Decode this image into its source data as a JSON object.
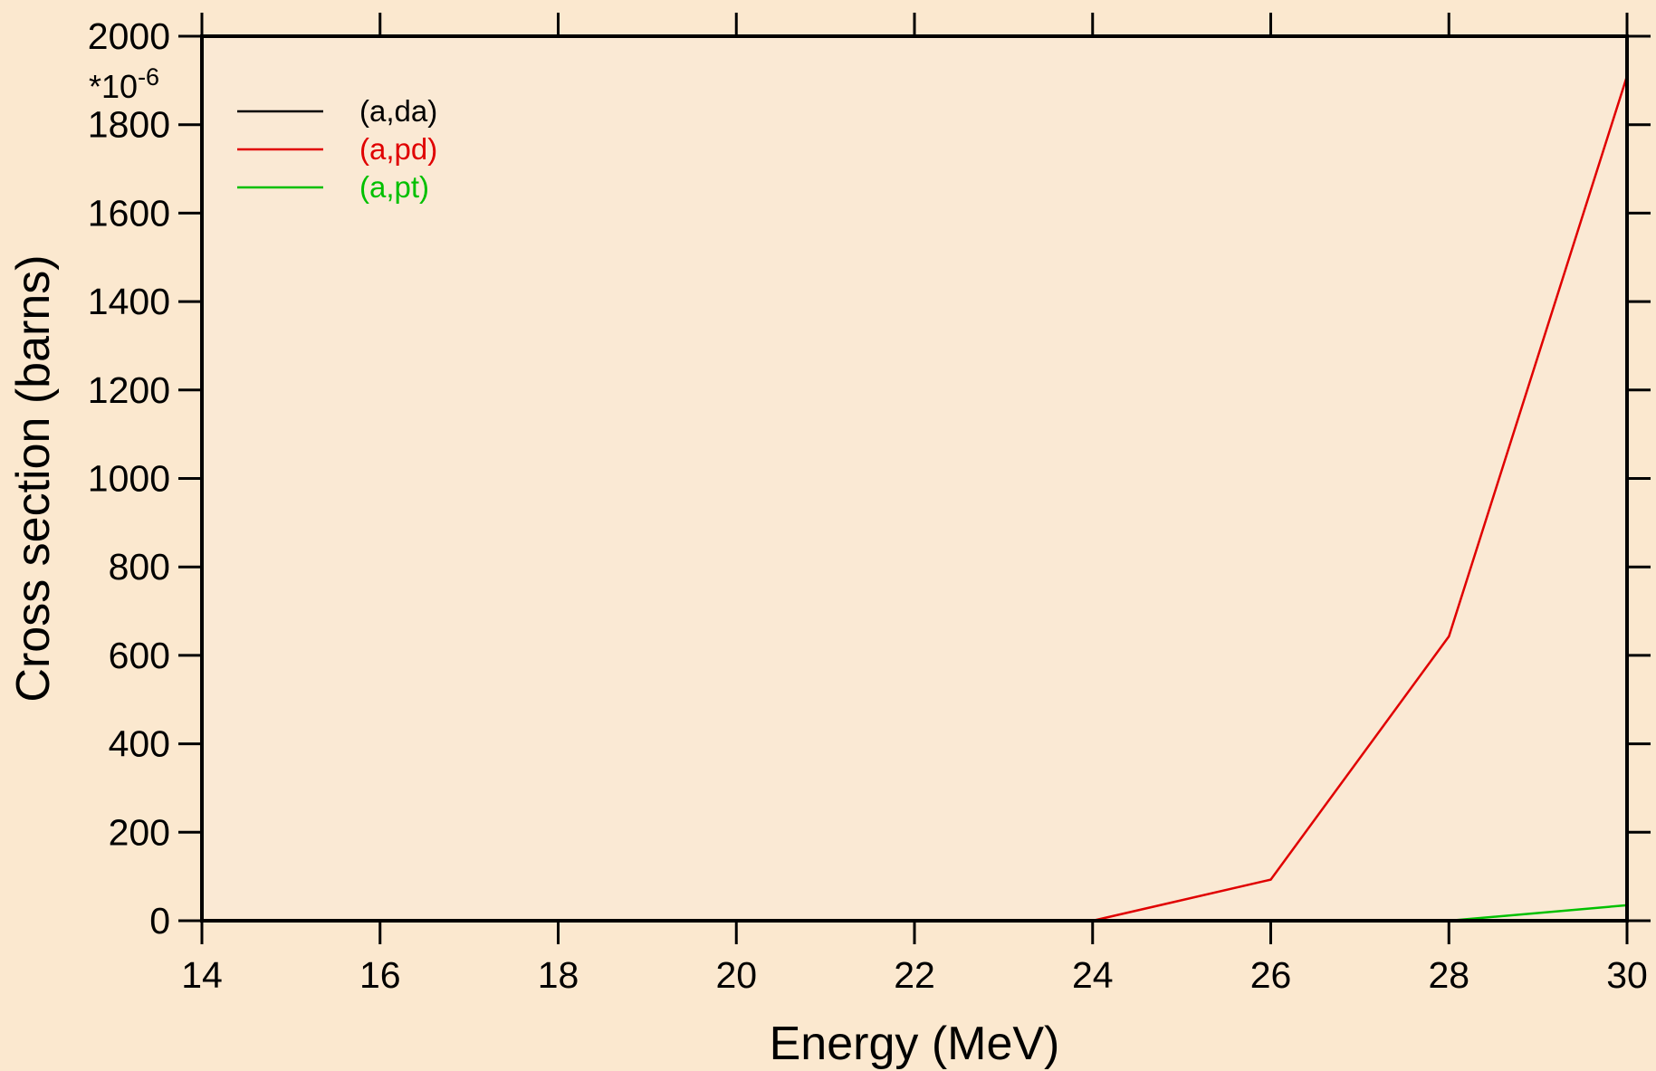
{
  "chart_data": {
    "type": "line",
    "xlabel": "Energy (MeV)",
    "ylabel": "Cross section (barns)",
    "y_multiplier": {
      "base": "*10",
      "exponent": "-6"
    },
    "xlim": [
      14,
      30
    ],
    "ylim": [
      0,
      2000
    ],
    "x_ticks": [
      14,
      16,
      18,
      20,
      22,
      24,
      26,
      28,
      30
    ],
    "y_ticks": [
      0,
      200,
      400,
      600,
      800,
      1000,
      1200,
      1400,
      1600,
      1800,
      2000
    ],
    "grid": false,
    "legend_position": "top-left",
    "plot_background": "#fae9d4",
    "page_background": "#fbe8cf",
    "series": [
      {
        "name": "(a,da)",
        "color": "#000000",
        "x": [
          14,
          16,
          17,
          18,
          20,
          22,
          24,
          26,
          28,
          30
        ],
        "y": [
          0,
          0,
          0,
          0,
          0,
          0,
          0,
          0,
          0,
          0
        ]
      },
      {
        "name": "(a,pd)",
        "color": "#e00000",
        "x": [
          16.8,
          18,
          20,
          22,
          24,
          26,
          28,
          30
        ],
        "y": [
          0,
          0,
          0,
          0,
          0,
          93,
          643,
          1910
        ]
      },
      {
        "name": "(a,pt)",
        "color": "#00c000",
        "x": [
          20,
          22,
          24,
          26,
          28,
          30
        ],
        "y": [
          0,
          0,
          0,
          0,
          0,
          35
        ]
      }
    ]
  }
}
